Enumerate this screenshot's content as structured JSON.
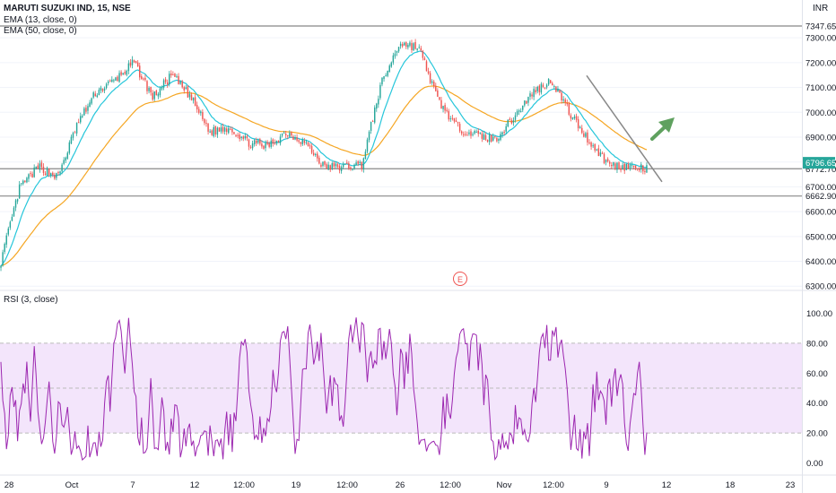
{
  "header": {
    "symbol_title": "MARUTI SUZUKI IND, 15, NSE",
    "ema13_label": "EMA (13, close, 0)",
    "ema50_label": "EMA (50, close, 0)",
    "currency": "INR",
    "rsi_label": "RSI (3, close)",
    "earnings_marker": "E"
  },
  "colors": {
    "up_candle": "#26a69a",
    "down_candle": "#ef5350",
    "ema13": "#26c6da",
    "ema50": "#f5a623",
    "rsi_line": "#9c27b0",
    "rsi_band": "#f3e5fb",
    "trendline": "#888888",
    "arrow": "#5fa15f",
    "hline": "#888888",
    "last_price_tag": "#26a69a"
  },
  "chart_data": [
    {
      "type": "candlestick",
      "title": "MARUTI SUZUKI IND, 15, NSE",
      "y_unit": "INR",
      "ylim": [
        6290,
        7380
      ],
      "y_ticks": [
        6300,
        6400,
        6500,
        6600,
        6700,
        6800,
        6900,
        7000,
        7100,
        7200,
        7300
      ],
      "y_tick_labels": [
        "6300.00",
        "6400.00",
        "6500.00",
        "6600.00",
        "6700.00",
        "6800.00",
        "6900.00",
        "7000.00",
        "7100.00",
        "7200.00",
        "7300.00"
      ],
      "x_tick_labels": [
        "28",
        "Oct",
        "7",
        "12",
        "12:00",
        "19",
        "12:00",
        "26",
        "12:00",
        "Nov",
        "12:00",
        "9",
        "12",
        "18",
        "23"
      ],
      "price_keypoints": [
        6400,
        6700,
        6780,
        6740,
        6950,
        7080,
        7130,
        7200,
        7060,
        7150,
        7060,
        6920,
        6940,
        6880,
        6860,
        6920,
        6880,
        6780,
        6780,
        6790,
        7110,
        7280,
        7260,
        7050,
        6940,
        6910,
        6890,
        6980,
        7080,
        7130,
        6990,
        6880,
        6790,
        6780,
        6770
      ],
      "series": [
        {
          "name": "EMA (13, close, 0)"
        },
        {
          "name": "EMA (50, close, 0)"
        }
      ],
      "horizontal_levels": [
        {
          "value": 7347.65,
          "label": "7347.65"
        },
        {
          "value": 6772.7,
          "label": "6772.70"
        },
        {
          "value": 6662.9,
          "label": "6662.90"
        }
      ],
      "last_price": {
        "value": 6796.65,
        "label": "6796.65"
      },
      "trendline": {
        "from": [
          7148,
          "Nov 8"
        ],
        "to": [
          6720,
          "Nov 11"
        ]
      },
      "annotations": [
        "up-arrow",
        "E"
      ]
    },
    {
      "type": "line",
      "title": "RSI (3, close)",
      "ylim": [
        -8,
        108
      ],
      "y_ticks": [
        0,
        20,
        40,
        60,
        80,
        100
      ],
      "y_tick_labels": [
        "0.00",
        "20.00",
        "40.00",
        "60.00",
        "80.00",
        "100.00"
      ],
      "band": [
        20,
        80
      ],
      "series": [
        {
          "name": "RSI (3, close)"
        }
      ]
    }
  ]
}
